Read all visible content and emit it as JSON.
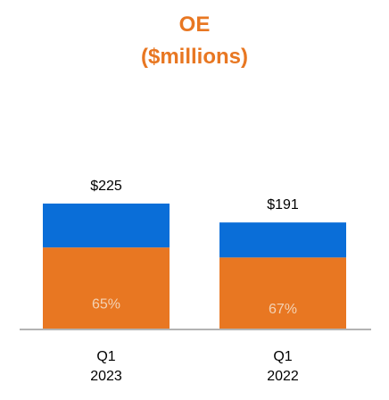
{
  "chart_data": {
    "type": "bar",
    "stacked": true,
    "title": "OE",
    "subtitle": "($millions)",
    "categories": [
      {
        "line1": "Q1",
        "line2": "2023"
      },
      {
        "line1": "Q1",
        "line2": "2022"
      }
    ],
    "totals": [
      225,
      191
    ],
    "total_labels": [
      "$225",
      "$191"
    ],
    "series": [
      {
        "values": [
          146,
          128
        ],
        "color": "#E87722",
        "labels": [
          "65%",
          "67%"
        ]
      },
      {
        "values": [
          79,
          63
        ],
        "color": "#0A6ED8"
      }
    ],
    "ylim": [
      0,
      250
    ],
    "grid": false,
    "legend": "none",
    "colors": {
      "title": "#E87722",
      "percent_label": "#F3D2B4",
      "baseline": "#9A9A9A"
    }
  }
}
